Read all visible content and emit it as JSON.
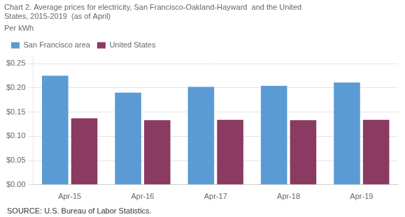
{
  "chart_data": {
    "type": "bar",
    "title": [
      "Chart 2. Average prices for electricity, San Francisco-Oakland-Hayward  and the United",
      "States, 2015-2019  (as of April)"
    ],
    "ylabel": "Per kWh",
    "annotations": [
      "SOURCE: U.S. Bureau of Labor Statistics."
    ],
    "categories": [
      "Apr-15",
      "Apr-16",
      "Apr-17",
      "Apr-18",
      "Apr-19"
    ],
    "series": [
      {
        "name": "San Francisco area",
        "color": "#5B9BD5",
        "values": [
          0.225,
          0.19,
          0.202,
          0.204,
          0.211
        ]
      },
      {
        "name": "United States",
        "color": "#8B3A62",
        "values": [
          0.137,
          0.133,
          0.134,
          0.133,
          0.134
        ]
      }
    ],
    "ylim": [
      0.0,
      0.265
    ],
    "yticks": [
      {
        "value": 0.0,
        "label": "$0.00"
      },
      {
        "value": 0.05,
        "label": "$0.05"
      },
      {
        "value": 0.1,
        "label": "$0.10"
      },
      {
        "value": 0.15,
        "label": "$0.15"
      },
      {
        "value": 0.2,
        "label": "$0.20"
      },
      {
        "value": 0.25,
        "label": "$0.25"
      }
    ],
    "grid": true,
    "legend": "upper left"
  }
}
